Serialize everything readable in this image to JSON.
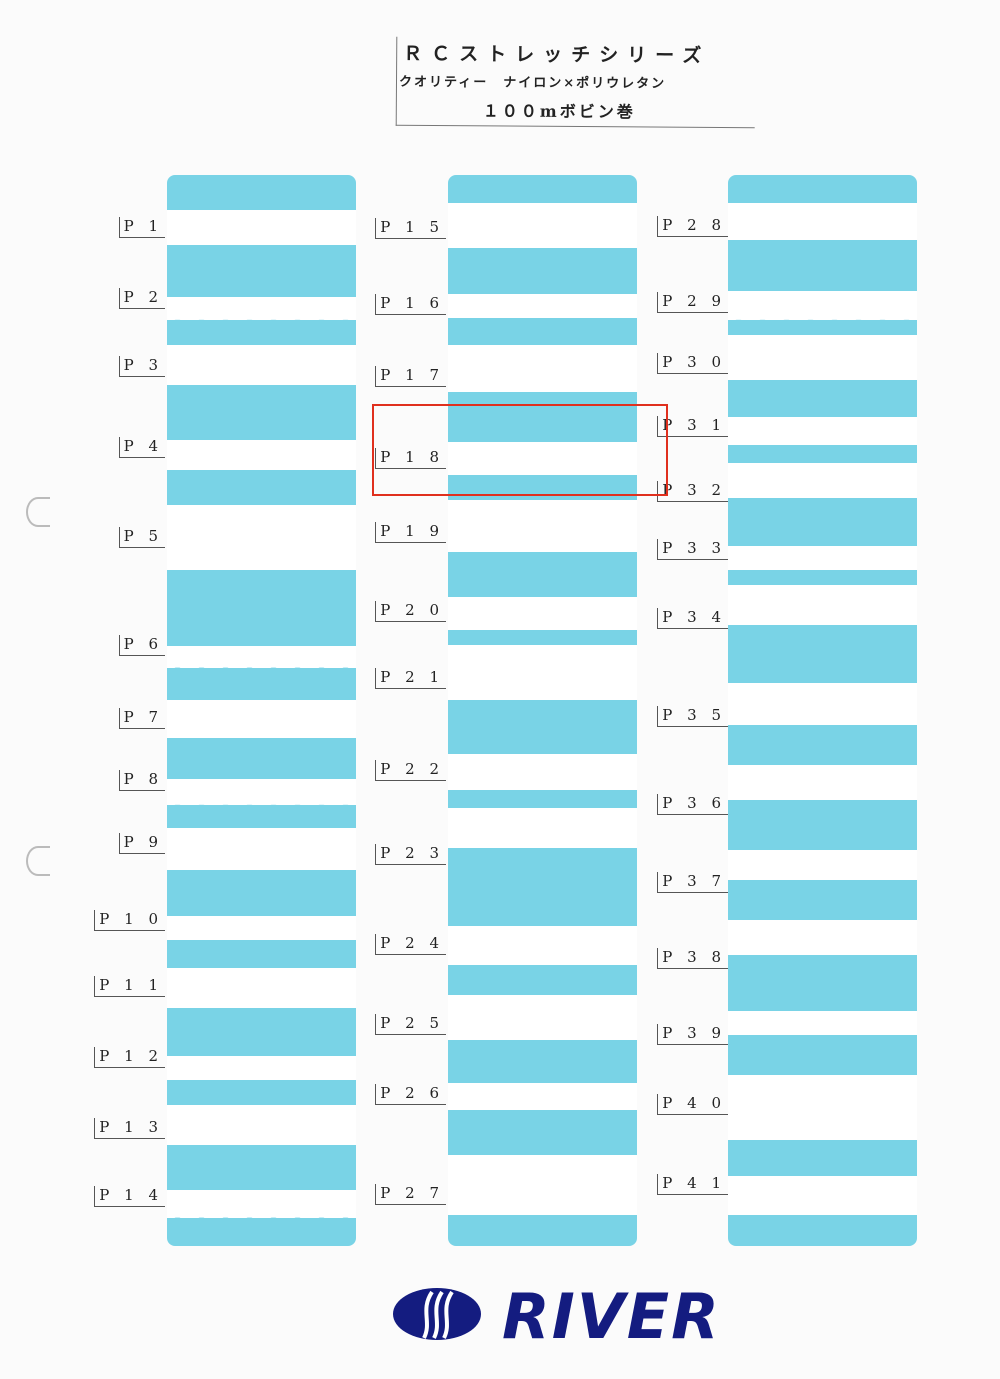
{
  "header": {
    "title": "ＲＣストレッチシリーズ",
    "subtitle": "クオリティー　ナイロン×ポリウレタン",
    "spec": "１００mボビン巻"
  },
  "columns": [
    {
      "labels": [
        "P 1",
        "P 2",
        "P 3",
        "P 4",
        "P 5",
        "P 6",
        "P 7",
        "P 8",
        "P 9",
        "P 1 0",
        "P 1 1",
        "P 1 2",
        "P 1 3",
        "P 1 4"
      ]
    },
    {
      "labels": [
        "P 1 5",
        "P 1 6",
        "P 1 7",
        "P 1 8",
        "P 1 9",
        "P 2 0",
        "P 2 1",
        "P 2 2",
        "P 2 3",
        "P 2 4",
        "P 2 5",
        "P 2 6",
        "P 2 7"
      ]
    },
    {
      "labels": [
        "P 2 8",
        "P 2 9",
        "P 3 0",
        "P 3 1",
        "P 3 2",
        "P 3 3",
        "P 3 4",
        "P 3 5",
        "P 3 6",
        "P 3 7",
        "P 3 8",
        "P 3 9",
        "P 4 0",
        "P 4 1"
      ]
    }
  ],
  "highlighted": "P 1 8",
  "logo": {
    "text": "RIVER",
    "color": "#141c80"
  },
  "colors": {
    "panel": "#79d3e6",
    "highlight": "#e0301e"
  }
}
